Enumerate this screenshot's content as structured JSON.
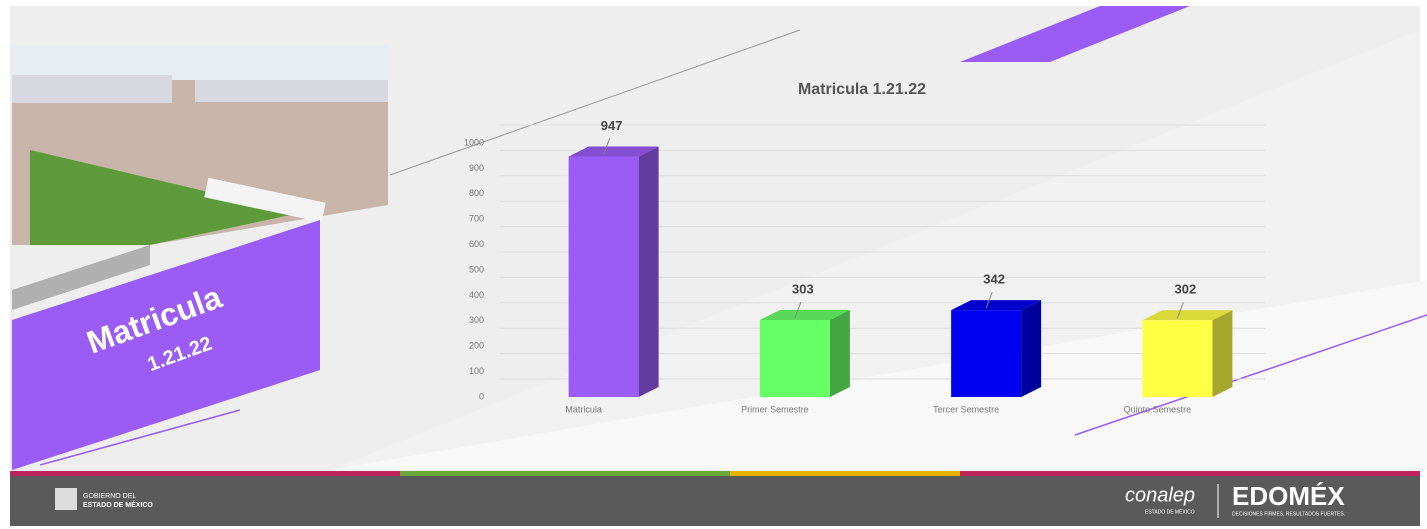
{
  "slide": {
    "heading": "Matricula",
    "subheading": "1.21.22",
    "footer_left_top": "GOBIERNO DEL",
    "footer_left_bottom": "ESTADO DE MÉXICO",
    "brand": "conalep",
    "brand_sub": "ESTADO DE MÉXICO",
    "logo": "EDOMÉX",
    "logo_sub": "DECISIONES FIRMES, RESULTADOS FUERTES."
  },
  "chart_data": {
    "type": "bar",
    "title": "Matricula 1.21.22",
    "categories": [
      "Matricula",
      "Primer Semestre",
      "Tercer Semestre",
      "Quinto Semestre"
    ],
    "values": [
      947,
      303,
      342,
      302
    ],
    "colors": [
      "#9a5cf5",
      "#66ff66",
      "#0000f0",
      "#ffff44"
    ],
    "ylim": [
      0,
      1000
    ],
    "yticks": [
      0,
      100,
      200,
      300,
      400,
      500,
      600,
      700,
      800,
      900,
      1000
    ],
    "grid": true
  }
}
